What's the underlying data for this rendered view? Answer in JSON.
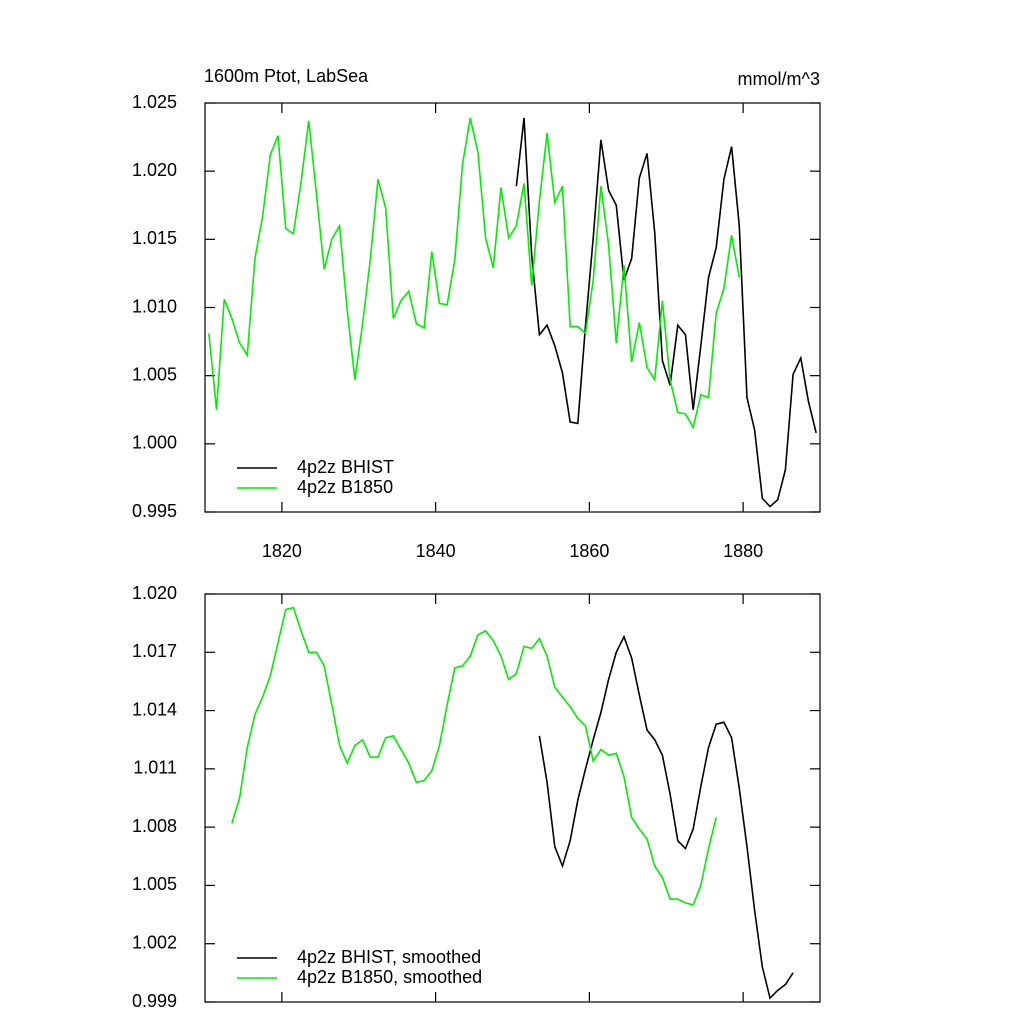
{
  "chart_data": [
    {
      "type": "line",
      "title": "1600m Ptot, LabSea",
      "units": "mmol/m^3",
      "xlim": [
        1810,
        1890
      ],
      "xticks": [
        1820,
        1840,
        1860,
        1880
      ],
      "xtick_labels": true,
      "ylim": [
        0.995,
        1.025
      ],
      "yticks": [
        1.025,
        {
          "value": 1.02,
          "label": "1.020"
        },
        1.015,
        {
          "value": 1.01,
          "label": "1.010"
        },
        1.005,
        {
          "value": 1,
          "label": "1.000"
        },
        0.995
      ],
      "legend": "lower left",
      "series": [
        {
          "name": "4p2z BHIST",
          "color": "#000000",
          "x": [
            1850.5,
            1851.5,
            1852.5,
            1853.5,
            1854.5,
            1855.5,
            1856.5,
            1857.5,
            1858.5,
            1859.5,
            1860.5,
            1861.5,
            1862.5,
            1863.5,
            1864.5,
            1865.5,
            1866.5,
            1867.5,
            1868.5,
            1869.5,
            1870.5,
            1871.5,
            1872.5,
            1873.5,
            1874.5,
            1875.5,
            1876.5,
            1877.5,
            1878.5,
            1879.5,
            1880.5,
            1881.5,
            1882.5,
            1883.5,
            1884.5,
            1885.5,
            1886.5,
            1887.5,
            1888.5,
            1889.5
          ],
          "values": [
            1.0189,
            1.0239,
            1.0138,
            1.008,
            1.0087,
            1.0072,
            1.0052,
            1.0016,
            1.0015,
            1.0087,
            1.0151,
            1.0223,
            1.0186,
            1.0175,
            1.012,
            1.0136,
            1.0195,
            1.0213,
            1.0155,
            1.0061,
            1.0043,
            1.0087,
            1.008,
            1.0025,
            1.0072,
            1.0122,
            1.0144,
            1.0194,
            1.0218,
            1.016,
            1.0034,
            1.001,
            0.996,
            0.9954,
            0.9959,
            0.9981,
            1.0051,
            1.0063,
            1.0031,
            1.0008
          ]
        },
        {
          "name": "4p2z B1850",
          "color": "#00ee00",
          "x": [
            1810.5,
            1811.5,
            1812.5,
            1813.5,
            1814.5,
            1815.5,
            1816.5,
            1817.5,
            1818.5,
            1819.5,
            1820.5,
            1821.5,
            1822.5,
            1823.5,
            1824.5,
            1825.5,
            1826.5,
            1827.5,
            1828.5,
            1829.5,
            1830.5,
            1831.5,
            1832.5,
            1833.5,
            1834.5,
            1835.5,
            1836.5,
            1837.5,
            1838.5,
            1839.5,
            1840.5,
            1841.5,
            1842.5,
            1843.5,
            1844.5,
            1845.5,
            1846.5,
            1847.5,
            1848.5,
            1849.5,
            1850.5,
            1851.5,
            1852.5,
            1853.5,
            1854.5,
            1855.5,
            1856.5,
            1857.5,
            1858.5,
            1859.5,
            1860.5,
            1861.5,
            1862.5,
            1863.5,
            1864.5,
            1865.5,
            1866.5,
            1867.5,
            1868.5,
            1869.5,
            1870.5,
            1871.5,
            1872.5,
            1873.5,
            1874.5,
            1875.5,
            1876.5,
            1877.5,
            1878.5,
            1879.5
          ],
          "values": [
            1.0081,
            1.0025,
            1.0106,
            1.0092,
            1.0074,
            1.0065,
            1.0136,
            1.0167,
            1.0212,
            1.0226,
            1.0158,
            1.0154,
            1.0192,
            1.0237,
            1.0183,
            1.0128,
            1.015,
            1.016,
            1.0098,
            1.0047,
            1.0088,
            1.0135,
            1.0194,
            1.0173,
            1.0092,
            1.0105,
            1.0112,
            1.0088,
            1.0085,
            1.0141,
            1.0103,
            1.0102,
            1.0135,
            1.0205,
            1.0239,
            1.0214,
            1.0151,
            1.0129,
            1.0188,
            1.0151,
            1.016,
            1.0191,
            1.0116,
            1.0178,
            1.0228,
            1.0177,
            1.0189,
            1.0086,
            1.0086,
            1.0081,
            1.012,
            1.0189,
            1.0146,
            1.0074,
            1.0131,
            1.006,
            1.0089,
            1.0056,
            1.0047,
            1.0105,
            1.0047,
            1.0023,
            1.0022,
            1.0012,
            1.0036,
            1.0034,
            1.0096,
            1.0114,
            1.0153,
            1.0122
          ]
        }
      ]
    },
    {
      "type": "line",
      "xlim": [
        1810,
        1890
      ],
      "xticks": [
        1820,
        1840,
        1860,
        1880
      ],
      "xtick_labels": false,
      "ylim": [
        0.999,
        1.02
      ],
      "yticks": [
        {
          "value": 1.02,
          "label": "1.020"
        },
        1.017,
        1.014,
        1.011,
        1.008,
        1.005,
        1.002,
        0.999
      ],
      "legend": "lower left",
      "series": [
        {
          "name": "4p2z BHIST, smoothed",
          "color": "#000000",
          "x": [
            1853.5,
            1854.5,
            1855.5,
            1856.5,
            1857.5,
            1858.5,
            1859.5,
            1860.5,
            1861.5,
            1862.5,
            1863.5,
            1864.5,
            1865.5,
            1866.5,
            1867.5,
            1868.5,
            1869.5,
            1870.5,
            1871.5,
            1872.5,
            1873.5,
            1874.5,
            1875.5,
            1876.5,
            1877.5,
            1878.5,
            1879.5,
            1880.5,
            1881.5,
            1882.5,
            1883.5,
            1884.5,
            1885.5,
            1886.5
          ],
          "values": [
            1.0127,
            1.0103,
            1.007,
            1.006,
            1.0073,
            1.0094,
            1.011,
            1.0125,
            1.0139,
            1.0156,
            1.017,
            1.0178,
            1.0167,
            1.0148,
            1.013,
            1.0125,
            1.0117,
            1.0097,
            1.0073,
            1.0069,
            1.0079,
            1.0101,
            1.0121,
            1.0133,
            1.0134,
            1.0126,
            1.01,
            1.007,
            1.0037,
            1.0008,
            0.9992,
            0.9996,
            0.9999,
            1.0005
          ]
        },
        {
          "name": "4p2z B1850, smoothed",
          "color": "#00ee00",
          "x": [
            1813.5,
            1814.5,
            1815.5,
            1816.5,
            1817.5,
            1818.5,
            1819.5,
            1820.5,
            1821.5,
            1822.5,
            1823.5,
            1824.5,
            1825.5,
            1826.5,
            1827.5,
            1828.5,
            1829.5,
            1830.5,
            1831.5,
            1832.5,
            1833.5,
            1834.5,
            1835.5,
            1836.5,
            1837.5,
            1838.5,
            1839.5,
            1840.5,
            1841.5,
            1842.5,
            1843.5,
            1844.5,
            1845.5,
            1846.5,
            1847.5,
            1848.5,
            1849.5,
            1850.5,
            1851.5,
            1852.5,
            1853.5,
            1854.5,
            1855.5,
            1856.5,
            1857.5,
            1858.5,
            1859.5,
            1860.5,
            1861.5,
            1862.5,
            1863.5,
            1864.5,
            1865.5,
            1866.5,
            1867.5,
            1868.5,
            1869.5,
            1870.5,
            1871.5,
            1872.5,
            1873.5,
            1874.5,
            1875.5,
            1876.5
          ],
          "values": [
            1.0082,
            1.0095,
            1.0121,
            1.0138,
            1.0147,
            1.0158,
            1.0175,
            1.0192,
            1.0193,
            1.0181,
            1.017,
            1.017,
            1.0163,
            1.0143,
            1.0122,
            1.0113,
            1.0122,
            1.0125,
            1.0116,
            1.0116,
            1.0126,
            1.0127,
            1.012,
            1.0113,
            1.0103,
            1.0104,
            1.0109,
            1.0122,
            1.0143,
            1.0162,
            1.0163,
            1.0168,
            1.0179,
            1.0181,
            1.0176,
            1.0168,
            1.0156,
            1.0159,
            1.0173,
            1.0172,
            1.0177,
            1.0168,
            1.0152,
            1.0147,
            1.0142,
            1.0136,
            1.0132,
            1.0114,
            1.012,
            1.0117,
            1.0118,
            1.0106,
            1.0085,
            1.0079,
            1.0074,
            1.006,
            1.0054,
            1.0043,
            1.0043,
            1.0041,
            1.004,
            1.005,
            1.0069,
            1.0085
          ]
        }
      ]
    }
  ]
}
